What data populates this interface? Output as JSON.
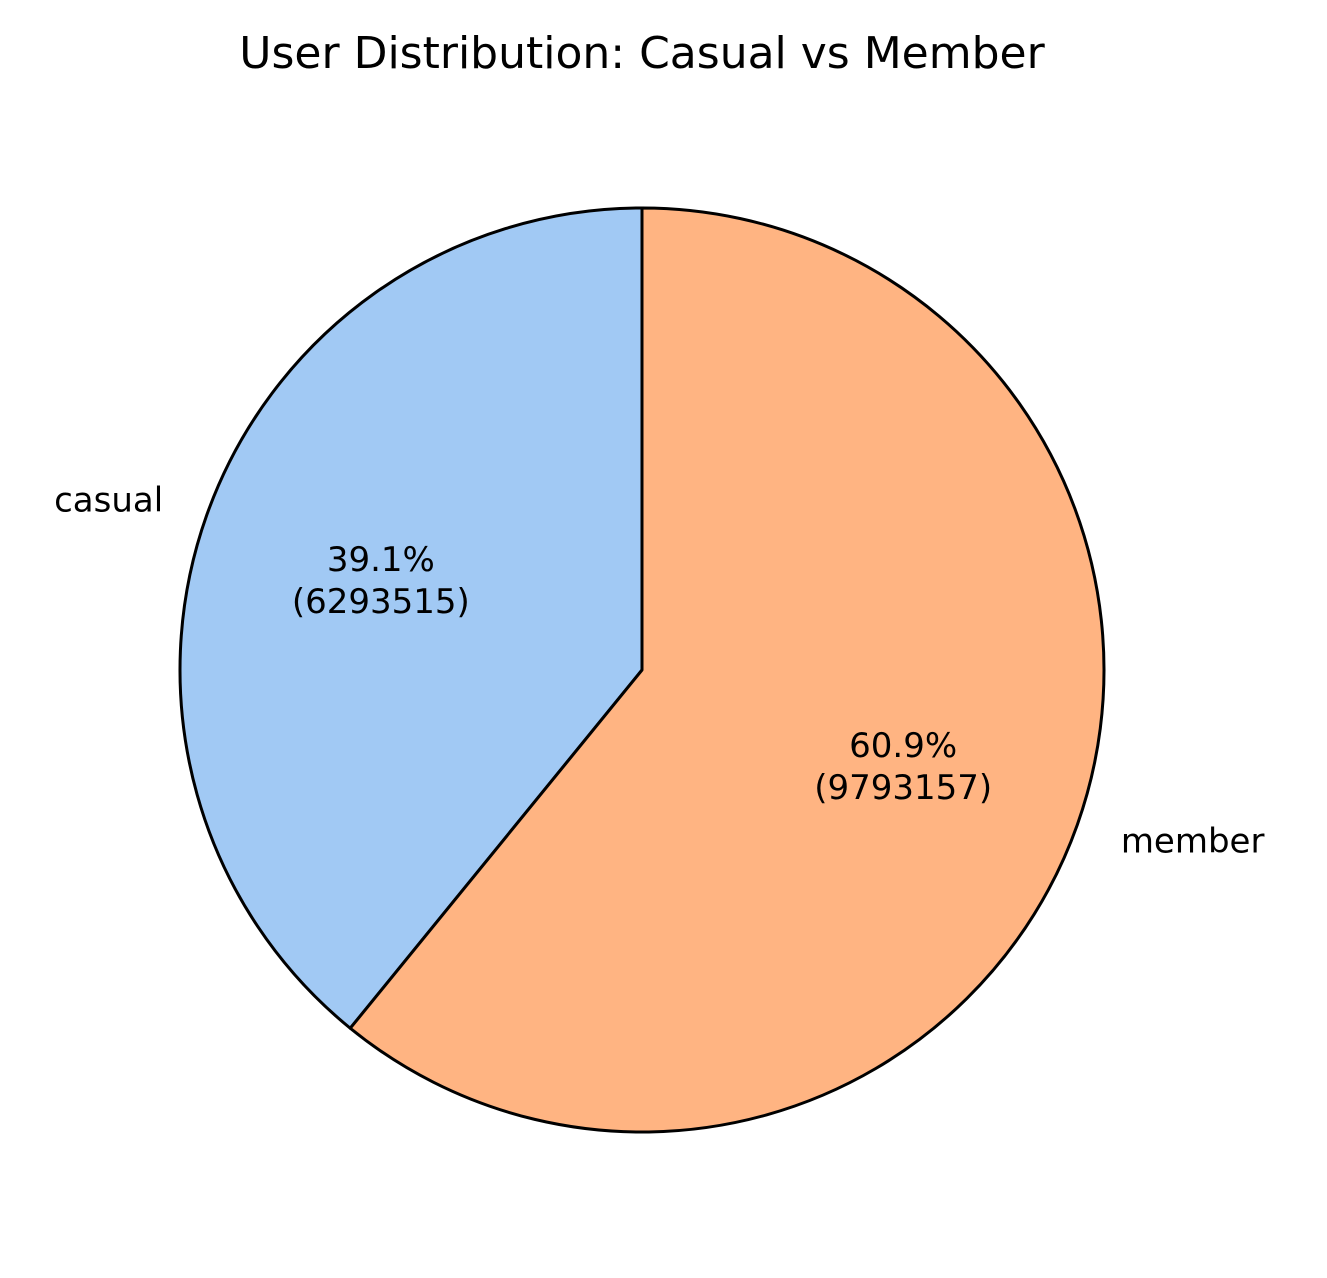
{
  "chart_data": {
    "type": "pie",
    "title": "User Distribution: Casual vs Member",
    "slices": [
      {
        "label": "casual",
        "value": 6293515,
        "percent_label": "39.1%",
        "count_label": "(6293515)",
        "color": "#a1c9f4"
      },
      {
        "label": "member",
        "value": 9793157,
        "percent_label": "60.9%",
        "count_label": "(9793157)",
        "color": "#ffb482"
      }
    ],
    "start_angle_deg": 90,
    "direction": "counterclockwise",
    "edge_color": "#000000"
  }
}
